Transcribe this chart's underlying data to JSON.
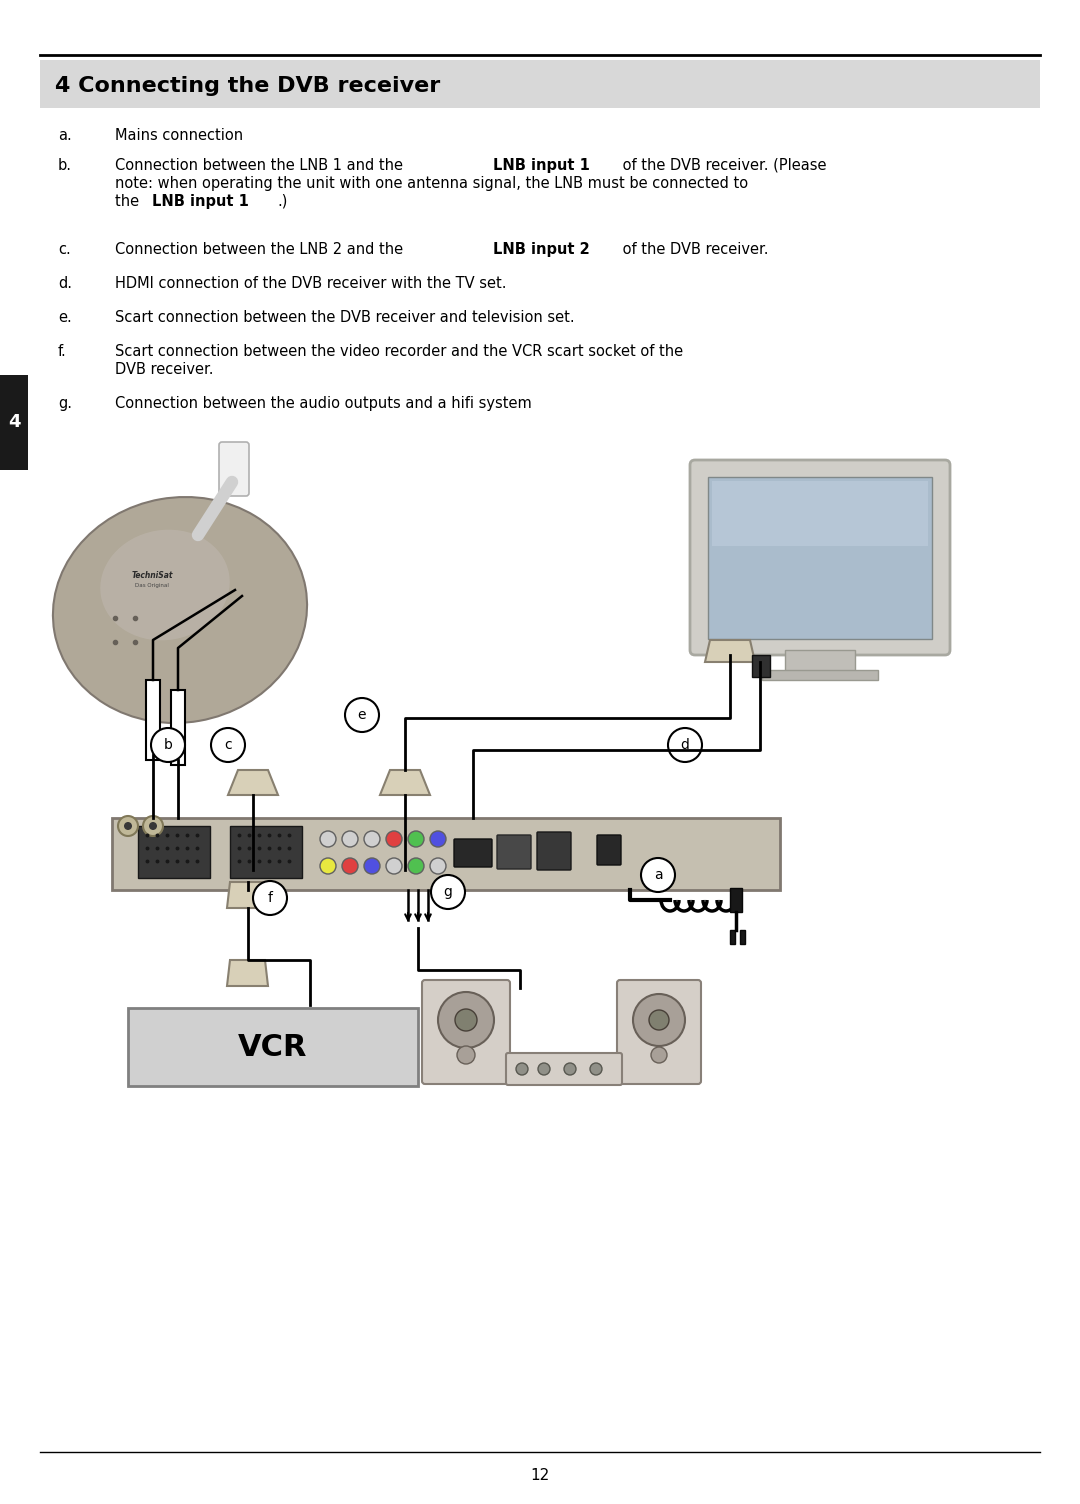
{
  "title": "4 Connecting the DVB receiver",
  "title_bg": "#d8d8d8",
  "page_bg": "#ffffff",
  "title_fontsize": 16,
  "body_fontsize": 11,
  "tab_label": "4",
  "tab_bg": "#1a1a1a",
  "tab_text": "#ffffff",
  "page_number": "12",
  "vcr_box_color": "#d0d0d0",
  "vcr_text": "VCR"
}
